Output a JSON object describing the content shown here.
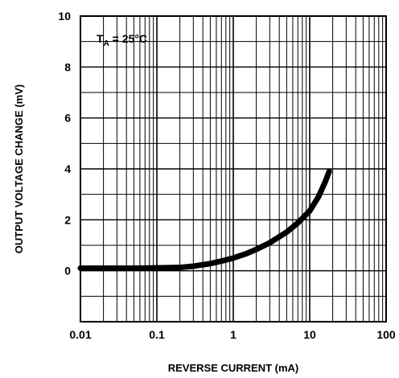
{
  "chart_data": {
    "type": "line",
    "xlabel": "REVERSE CURRENT (mA)",
    "ylabel": "OUTPUT VOLTAGE CHANGE (mV)",
    "x_scale": "log",
    "xlim": [
      0.01,
      100
    ],
    "ylim": [
      -2,
      10
    ],
    "x_ticks": [
      "0.01",
      "0.1",
      "1",
      "10",
      "100"
    ],
    "y_ticks": [
      "0",
      "2",
      "4",
      "6",
      "8",
      "10"
    ],
    "grid": true,
    "annotation": {
      "label": "T",
      "subscript": "A",
      "text": " = 25°C"
    },
    "series": [
      {
        "x": [
          0.01,
          0.02,
          0.05,
          0.1,
          0.2,
          0.3,
          0.5,
          0.7,
          1,
          1.5,
          2,
          3,
          5,
          7,
          10,
          13,
          16,
          18
        ],
        "y": [
          0.1,
          0.1,
          0.1,
          0.11,
          0.13,
          0.18,
          0.28,
          0.38,
          0.5,
          0.68,
          0.84,
          1.1,
          1.52,
          1.88,
          2.35,
          2.9,
          3.5,
          3.9
        ]
      }
    ]
  }
}
